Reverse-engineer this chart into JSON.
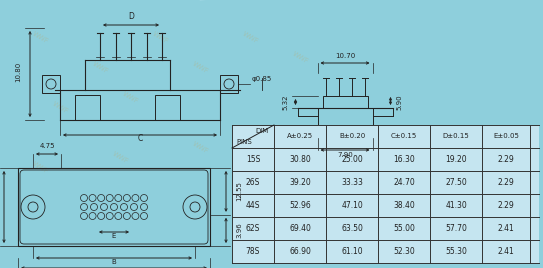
{
  "bg_color": "#8ecfdc",
  "table_header_diag": [
    "DIM",
    "PINS"
  ],
  "table_header_cols": [
    "A±0.25",
    "B±0.20",
    "C±0.15",
    "D±0.15",
    "E±0.05"
  ],
  "table_data": [
    [
      "15S",
      "30.80",
      "25.00",
      "16.30",
      "19.20",
      "2.29"
    ],
    [
      "26S",
      "39.20",
      "33.33",
      "24.70",
      "27.50",
      "2.29"
    ],
    [
      "44S",
      "52.96",
      "47.10",
      "38.40",
      "41.30",
      "2.29"
    ],
    [
      "62S",
      "69.40",
      "63.50",
      "55.00",
      "57.70",
      "2.41"
    ],
    [
      "78S",
      "66.90",
      "61.10",
      "52.30",
      "55.30",
      "2.41"
    ]
  ],
  "dim_color": "#222222",
  "line_color": "#222222",
  "table_border": "#333333",
  "wm_texts": [
    "WWF",
    "WWF",
    "WWF",
    "WWF",
    "WWF",
    "WWF"
  ],
  "wm_color": "#c8a050",
  "wm_alpha": 0.25
}
